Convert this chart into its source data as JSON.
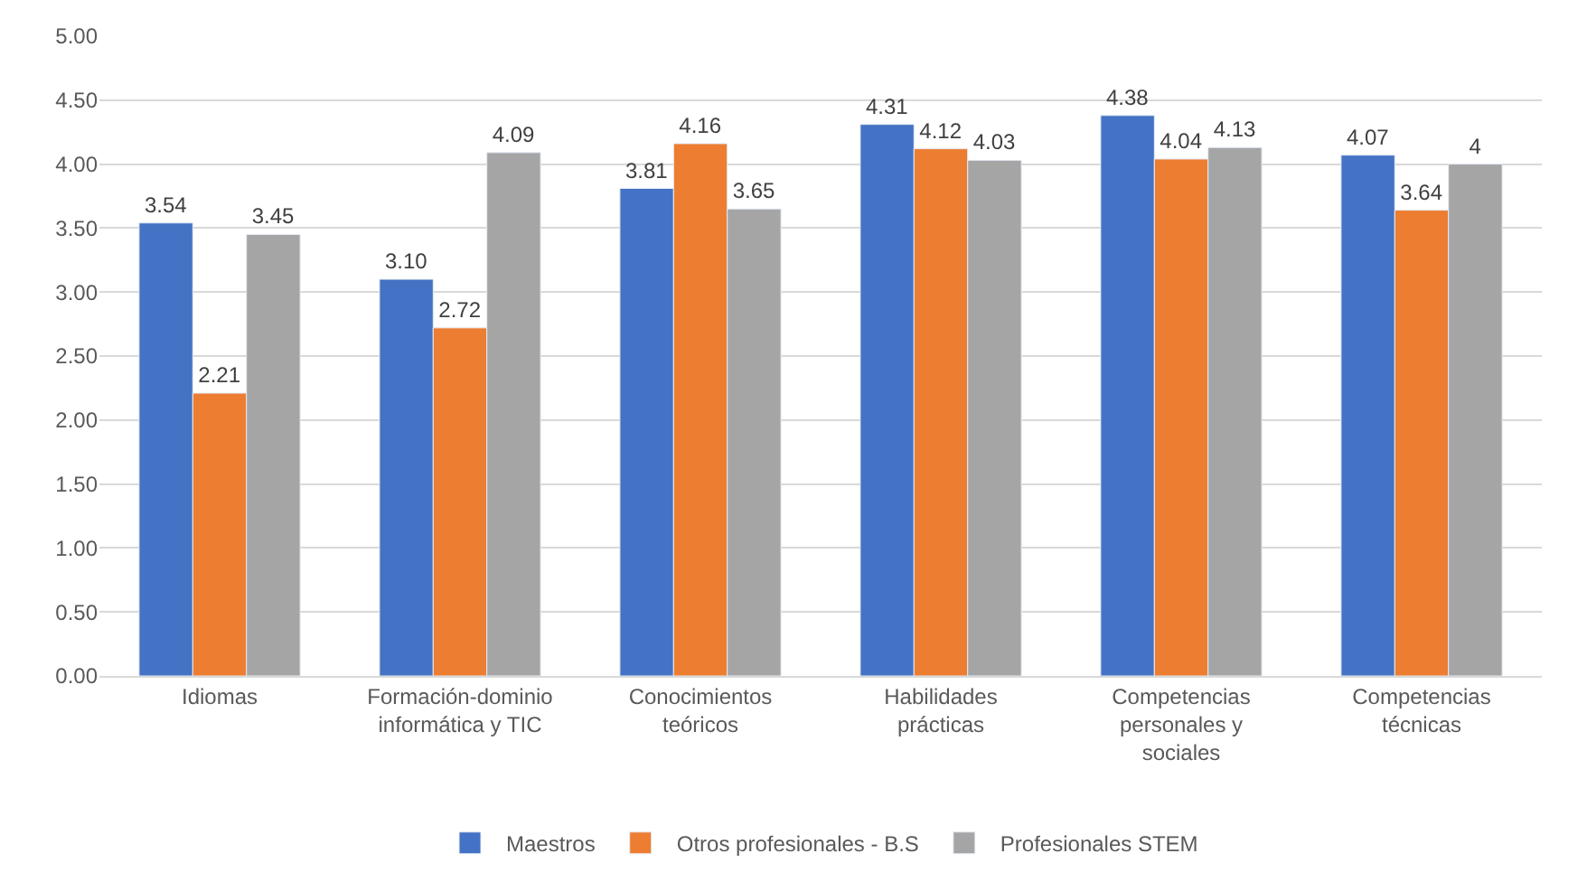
{
  "chart_data": {
    "type": "bar",
    "categories": [
      "Idiomas",
      "Formación-dominio informática y TIC",
      "Conocimientos teóricos",
      "Habilidades prácticas",
      "Competencias personales y sociales",
      "Competencias técnicas"
    ],
    "series": [
      {
        "name": "Maestros",
        "color": "#4472c4",
        "values": [
          3.54,
          3.1,
          3.81,
          4.31,
          4.38,
          4.07
        ],
        "value_labels": [
          "3.54",
          "3.10",
          "3.81",
          "4.31",
          "4.38",
          "4.07"
        ]
      },
      {
        "name": "Otros profesionales - B.S",
        "color": "#ed7d31",
        "values": [
          2.21,
          2.72,
          4.16,
          4.12,
          4.04,
          3.64
        ],
        "value_labels": [
          "2.21",
          "2.72",
          "4.16",
          "4.12",
          "4.04",
          "3.64"
        ]
      },
      {
        "name": "Profesionales STEM",
        "color": "#a5a5a5",
        "values": [
          3.45,
          4.09,
          3.65,
          4.03,
          4.13,
          4.0
        ],
        "value_labels": [
          "3.45",
          "4.09",
          "3.65",
          "4.03",
          "4.13",
          "4"
        ]
      }
    ],
    "ylim": [
      0,
      5
    ],
    "yticks": [
      {
        "value": 0,
        "label": "0.00"
      },
      {
        "value": 0.5,
        "label": "0.50"
      },
      {
        "value": 1,
        "label": "1.00"
      },
      {
        "value": 1.5,
        "label": "1.50"
      },
      {
        "value": 2,
        "label": "2.00"
      },
      {
        "value": 2.5,
        "label": "2.50"
      },
      {
        "value": 3,
        "label": "3.00"
      },
      {
        "value": 3.5,
        "label": "3.50"
      },
      {
        "value": 4,
        "label": "4.00"
      },
      {
        "value": 4.5,
        "label": "4.50"
      },
      {
        "value": 5,
        "label": "5.00"
      }
    ],
    "grid": "y",
    "legend": "bottom"
  }
}
